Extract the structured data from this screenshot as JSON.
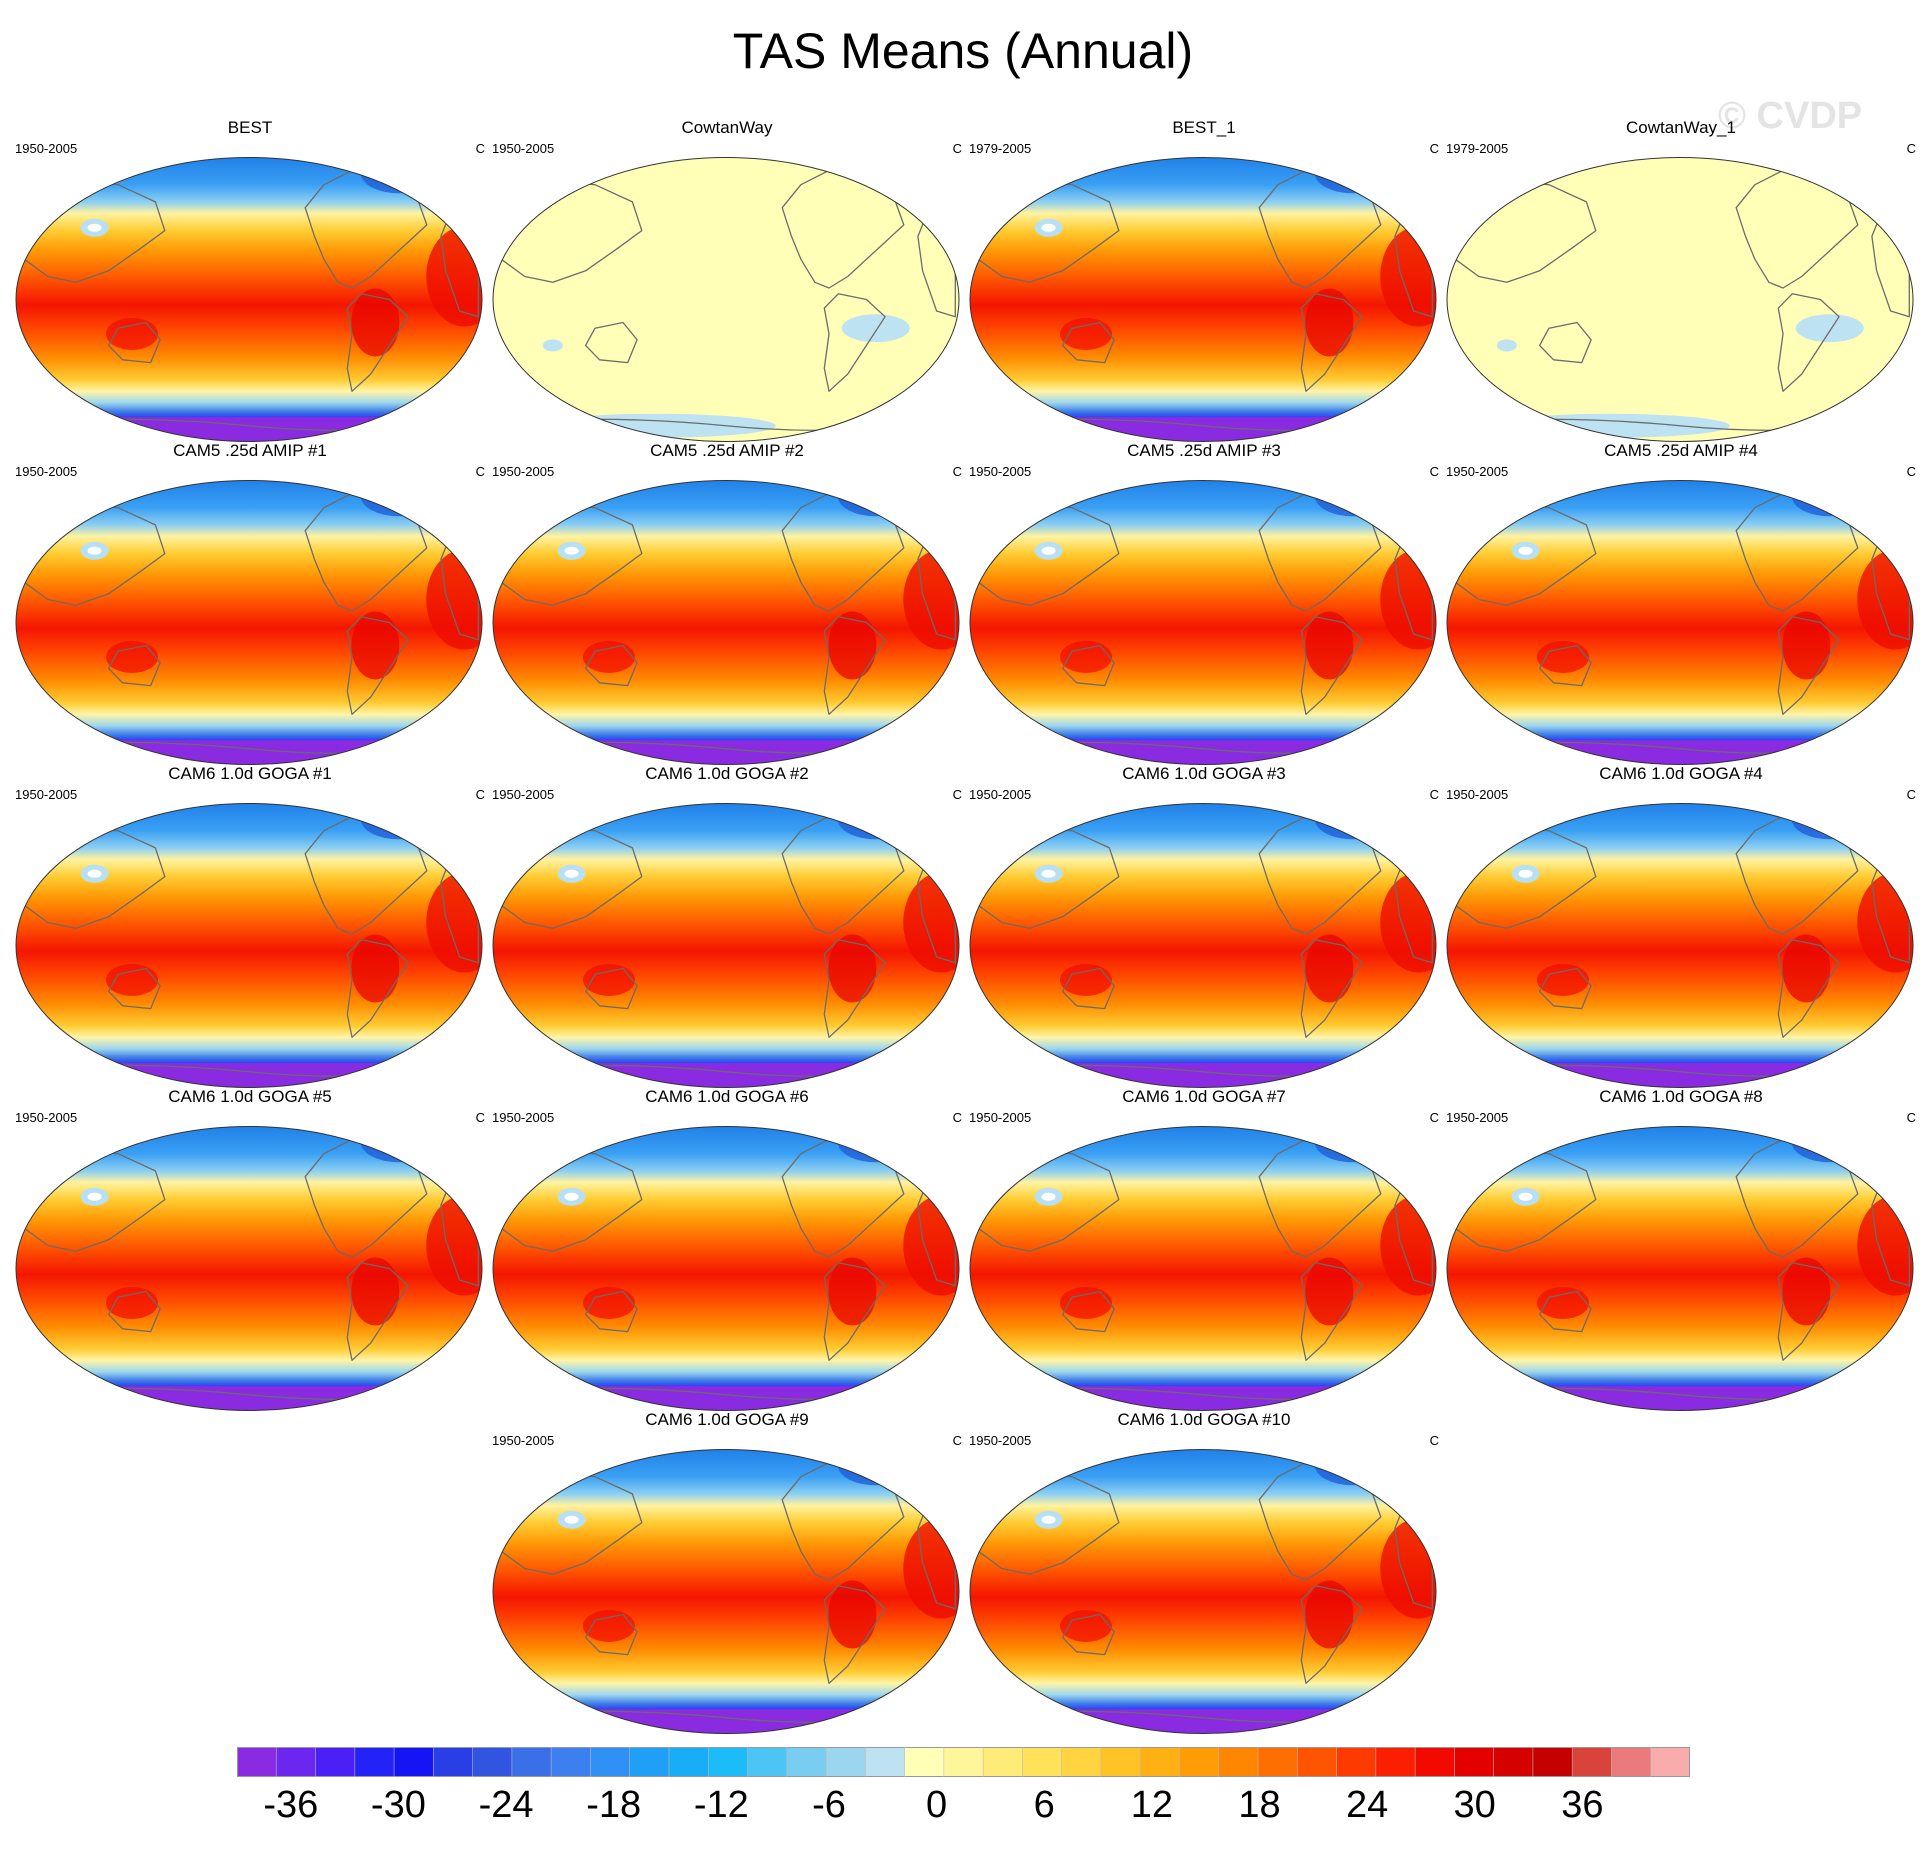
{
  "figure": {
    "title": "TAS Means (Annual)",
    "watermark": "© CVDP"
  },
  "panels": [
    {
      "title": "BEST",
      "period": "1950-2005",
      "units": "C",
      "style": "warm"
    },
    {
      "title": "CowtanWay",
      "period": "1950-2005",
      "units": "C",
      "style": "flat"
    },
    {
      "title": "BEST_1",
      "period": "1979-2005",
      "units": "C",
      "style": "warm"
    },
    {
      "title": "CowtanWay_1",
      "period": "1979-2005",
      "units": "C",
      "style": "flat"
    },
    {
      "title": "CAM5 .25d AMIP #1",
      "period": "1950-2005",
      "units": "C",
      "style": "warm"
    },
    {
      "title": "CAM5 .25d AMIP #2",
      "period": "1950-2005",
      "units": "C",
      "style": "warm"
    },
    {
      "title": "CAM5 .25d AMIP #3",
      "period": "1950-2005",
      "units": "C",
      "style": "warm"
    },
    {
      "title": "CAM5 .25d AMIP #4",
      "period": "1950-2005",
      "units": "C",
      "style": "warm"
    },
    {
      "title": "CAM6 1.0d GOGA #1",
      "period": "1950-2005",
      "units": "C",
      "style": "warm"
    },
    {
      "title": "CAM6 1.0d GOGA #2",
      "period": "1950-2005",
      "units": "C",
      "style": "warm"
    },
    {
      "title": "CAM6 1.0d GOGA #3",
      "period": "1950-2005",
      "units": "C",
      "style": "warm"
    },
    {
      "title": "CAM6 1.0d GOGA #4",
      "period": "1950-2005",
      "units": "C",
      "style": "warm"
    },
    {
      "title": "CAM6 1.0d GOGA #5",
      "period": "1950-2005",
      "units": "C",
      "style": "warm"
    },
    {
      "title": "CAM6 1.0d GOGA #6",
      "period": "1950-2005",
      "units": "C",
      "style": "warm"
    },
    {
      "title": "CAM6 1.0d GOGA #7",
      "period": "1950-2005",
      "units": "C",
      "style": "warm"
    },
    {
      "title": "CAM6 1.0d GOGA #8",
      "period": "1950-2005",
      "units": "C",
      "style": "warm"
    },
    {
      "title": "CAM6 1.0d GOGA #9",
      "period": "1950-2005",
      "units": "C",
      "style": "warm"
    },
    {
      "title": "CAM6 1.0d GOGA #10",
      "period": "1950-2005",
      "units": "C",
      "style": "warm"
    }
  ],
  "colorbar": {
    "labels": [
      "-36",
      "-30",
      "-24",
      "-18",
      "-12",
      "-6",
      "0",
      "6",
      "12",
      "18",
      "24",
      "30",
      "36"
    ],
    "colors": [
      "#8a2be2",
      "#6b27f0",
      "#4b20f7",
      "#2323f7",
      "#1414f5",
      "#2a3ee6",
      "#3155e0",
      "#3b6fe8",
      "#3c80f0",
      "#2f91f5",
      "#209ff7",
      "#18adf6",
      "#1bbcf8",
      "#4cc4f4",
      "#78cdf0",
      "#9cd6ee",
      "#bde3f2",
      "#ffffb8",
      "#fff59a",
      "#ffec78",
      "#ffe25a",
      "#ffd440",
      "#ffc326",
      "#ffb012",
      "#ff9c06",
      "#ff8600",
      "#ff6e00",
      "#ff5400",
      "#ff3a00",
      "#fb1e00",
      "#f20a00",
      "#e50000",
      "#d50000",
      "#c50000",
      "#d8443c",
      "#ea7a7c",
      "#f8acac"
    ],
    "range": [
      -39,
      42
    ]
  }
}
